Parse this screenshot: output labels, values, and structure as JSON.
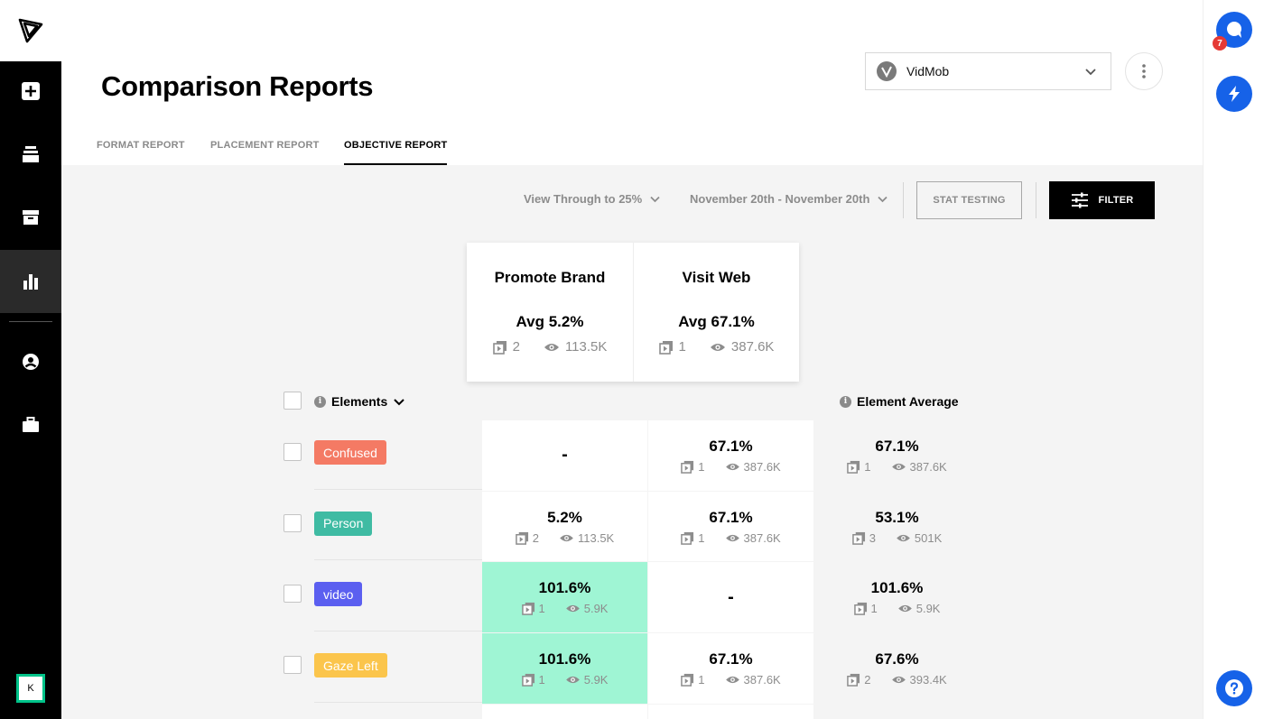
{
  "app": {
    "title": "Comparison Reports",
    "accent_color": "#1662e8",
    "highlight_color": "#9ff5d4",
    "user_initial": "K",
    "notifications_count": "7"
  },
  "sidebar": {
    "items": [
      {
        "icon": "add-icon",
        "active": false
      },
      {
        "icon": "layers-icon",
        "active": false
      },
      {
        "icon": "archive-icon",
        "active": false
      },
      {
        "icon": "bar-chart-icon",
        "active": true
      },
      {
        "icon": "account-icon",
        "active": false
      },
      {
        "icon": "briefcase-icon",
        "active": false
      }
    ]
  },
  "org_select": {
    "selected": "VidMob"
  },
  "tabs": [
    {
      "label": "FORMAT REPORT",
      "active": false
    },
    {
      "label": "PLACEMENT REPORT",
      "active": false
    },
    {
      "label": "OBJECTIVE REPORT",
      "active": true
    }
  ],
  "toolbar": {
    "metric": "View Through to 25%",
    "date_range": "November 20th - November 20th",
    "stat_testing": "STAT TESTING",
    "filter": "FILTER"
  },
  "objectives": [
    {
      "name": "Promote Brand",
      "avg": "Avg 5.2%",
      "creatives": "2",
      "views": "113.5K"
    },
    {
      "name": "Visit Web",
      "avg": "Avg 67.1%",
      "creatives": "1",
      "views": "387.6K"
    }
  ],
  "table": {
    "elements_header": "Elements",
    "average_header": "Element Average",
    "rows": [
      {
        "tag": "Confused",
        "tag_color": "#f47a64",
        "cells": [
          {
            "value": "-"
          },
          {
            "value": "67.1%",
            "creatives": "1",
            "views": "387.6K"
          }
        ],
        "average": {
          "value": "67.1%",
          "creatives": "1",
          "views": "387.6K"
        }
      },
      {
        "tag": "Person",
        "tag_color": "#3fbba3",
        "cells": [
          {
            "value": "5.2%",
            "creatives": "2",
            "views": "113.5K"
          },
          {
            "value": "67.1%",
            "creatives": "1",
            "views": "387.6K"
          }
        ],
        "average": {
          "value": "53.1%",
          "creatives": "3",
          "views": "501K"
        }
      },
      {
        "tag": "video",
        "tag_color": "#5b5ff0",
        "cells": [
          {
            "value": "101.6%",
            "creatives": "1",
            "views": "5.9K",
            "highlight": true
          },
          {
            "value": "-"
          }
        ],
        "average": {
          "value": "101.6%",
          "creatives": "1",
          "views": "5.9K"
        }
      },
      {
        "tag": "Gaze Left",
        "tag_color": "#fbc54c",
        "cells": [
          {
            "value": "101.6%",
            "creatives": "1",
            "views": "5.9K",
            "highlight": true
          },
          {
            "value": "67.1%",
            "creatives": "1",
            "views": "387.6K"
          }
        ],
        "average": {
          "value": "67.6%",
          "creatives": "2",
          "views": "393.4K"
        }
      }
    ]
  }
}
